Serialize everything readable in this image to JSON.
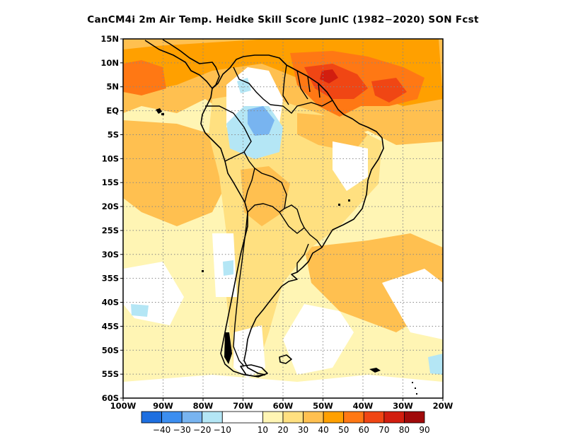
{
  "title": "CanCM4i  2m Air Temp. Heidke Skill Score JunIC (1982−2020) SON Fcst",
  "map": {
    "lon_range": [
      -100,
      -20
    ],
    "lat_range": [
      -60,
      15
    ],
    "lat_ticks": [
      "15N",
      "10N",
      "5N",
      "EQ",
      "5S",
      "10S",
      "15S",
      "20S",
      "25S",
      "30S",
      "35S",
      "40S",
      "45S",
      "50S",
      "55S",
      "60S"
    ],
    "lon_ticks": [
      "100W",
      "90W",
      "80W",
      "70W",
      "60W",
      "50W",
      "40W",
      "30W",
      "20W"
    ],
    "grid": true,
    "fill_colors": {
      "ocean_base": "#fff5b4",
      "land_base": "#ffe080",
      "level_10": "#ffffff"
    }
  },
  "colorbar": {
    "labels": [
      "−40",
      "−30",
      "−20",
      "−10",
      "10",
      "20",
      "30",
      "40",
      "50",
      "60",
      "70",
      "80",
      "90"
    ],
    "colors": [
      "#1e6fe0",
      "#3c8ef0",
      "#78b4f0",
      "#b4e6f5",
      "#ffffff",
      "#fff5b4",
      "#ffe080",
      "#ffc050",
      "#ffa000",
      "#ff7814",
      "#f04614",
      "#d21e0f",
      "#a00a0a"
    ]
  }
}
